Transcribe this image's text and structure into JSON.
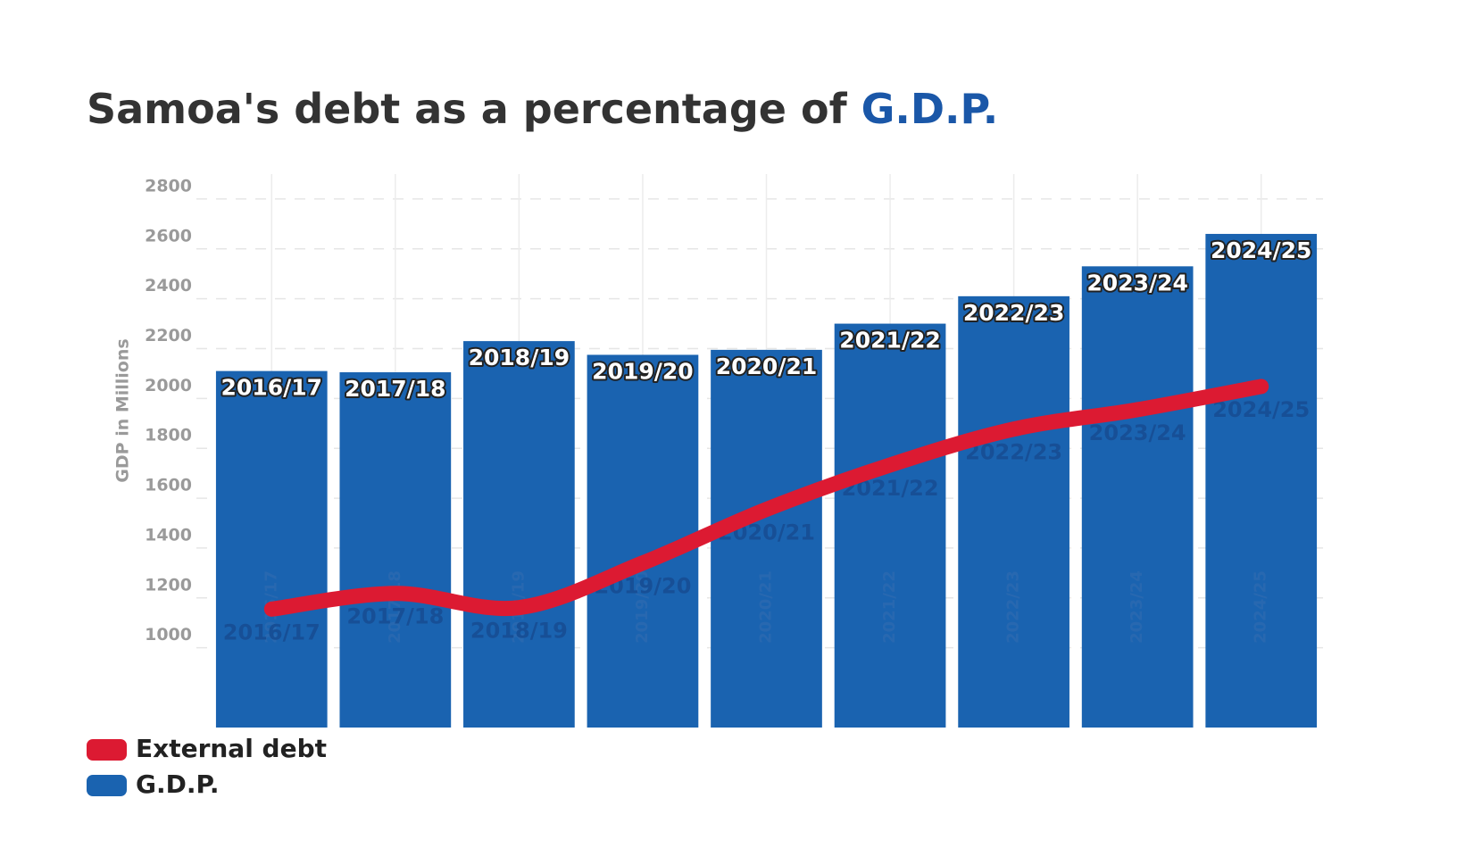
{
  "chart_data": {
    "type": "bar",
    "title": "Samoa's debt as a percentage of",
    "title_highlight": "G.D.P.",
    "y_axis_label": "GDP in Millions",
    "categories": [
      "2016/17",
      "2017/18",
      "2018/19",
      "2019/20",
      "2020/21",
      "2021/22",
      "2022/23",
      "2023/24",
      "2024/25"
    ],
    "series": [
      {
        "name": "External debt",
        "type": "line",
        "color": "#dc1a32",
        "values": [
          1155,
          1218,
          1161,
          1340,
          1555,
          1733,
          1877,
          1955,
          2048
        ]
      },
      {
        "name": "G.D.P.",
        "type": "bar",
        "color": "#1a63b0",
        "values": [
          2110,
          2105,
          2230,
          2175,
          2195,
          2300,
          2410,
          2530,
          2660
        ]
      }
    ],
    "ylim": [
      680,
      2900
    ],
    "yticks": [
      1000,
      1200,
      1400,
      1600,
      1800,
      2000,
      2200,
      2400,
      2600,
      2800
    ],
    "grid": true,
    "legend": "bottom-left"
  }
}
